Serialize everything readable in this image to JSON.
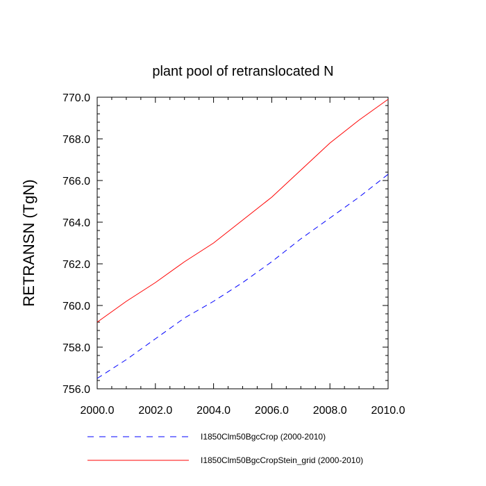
{
  "chart_data": {
    "type": "line",
    "title": "plant pool of retranslocated N",
    "xlabel": "",
    "ylabel": "RETRANSN  (TgN)",
    "xlim": [
      2000,
      2010
    ],
    "ylim": [
      756,
      770
    ],
    "x_ticks": [
      "2000.0",
      "2002.0",
      "2004.0",
      "2006.0",
      "2008.0",
      "2010.0"
    ],
    "y_ticks": [
      "756.0",
      "758.0",
      "760.0",
      "762.0",
      "764.0",
      "766.0",
      "768.0",
      "770.0"
    ],
    "grid": false,
    "legend_position": "bottom",
    "x": [
      2000,
      2001,
      2002,
      2003,
      2004,
      2005,
      2006,
      2007,
      2008,
      2009,
      2010
    ],
    "series": [
      {
        "name": "I1850Clm50BgcCrop (2000-2010)",
        "color": "#0000ff",
        "dash": "dashed",
        "values": [
          756.5,
          757.4,
          758.4,
          759.4,
          760.2,
          761.1,
          762.1,
          763.2,
          764.2,
          765.2,
          766.3
        ]
      },
      {
        "name": "I1850Clm50BgcCropStein_grid (2000-2010)",
        "color": "#ff0000",
        "dash": "solid",
        "values": [
          759.2,
          760.2,
          761.1,
          762.1,
          763.0,
          764.1,
          765.2,
          766.5,
          767.8,
          768.9,
          769.9
        ]
      }
    ]
  }
}
